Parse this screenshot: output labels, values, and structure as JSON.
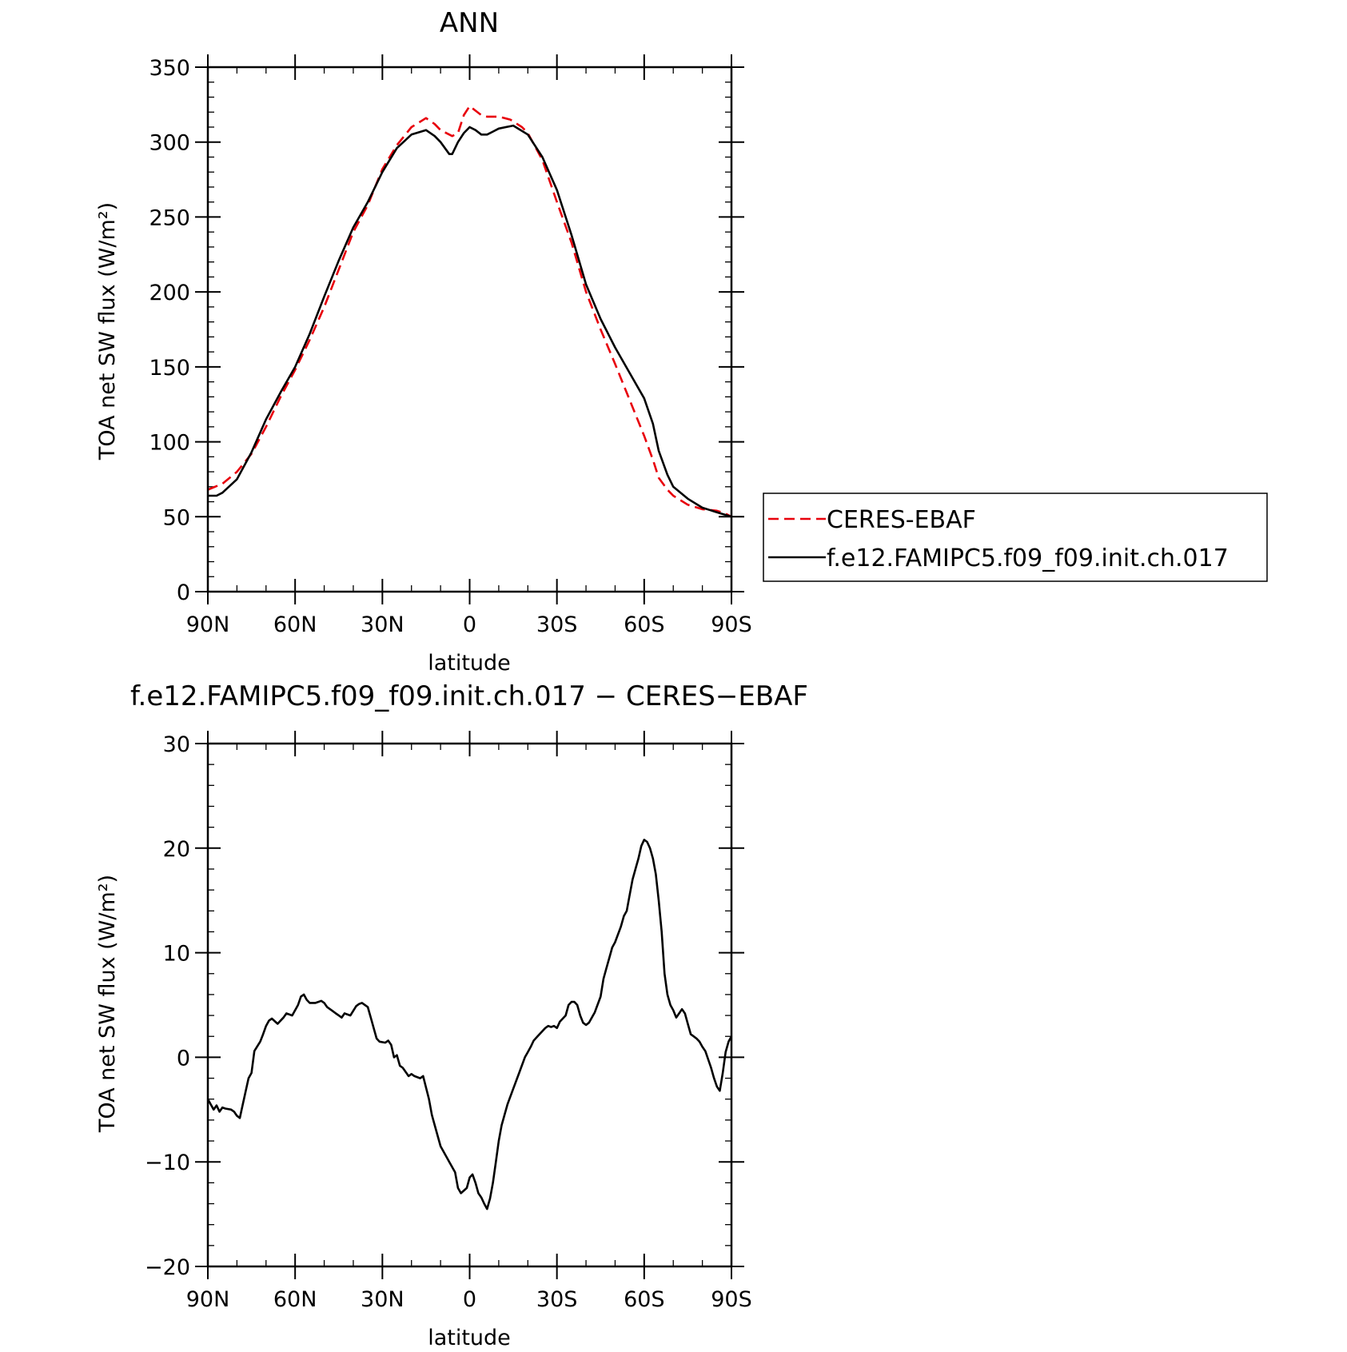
{
  "chart_data": [
    {
      "type": "line",
      "title": "ANN",
      "xlabel": "latitude",
      "ylabel": "TOA net SW flux (W/m²)",
      "xlim": [
        90,
        -90
      ],
      "ylim": [
        0,
        350
      ],
      "x_ticks": [
        90,
        60,
        30,
        0,
        -30,
        -60,
        -90
      ],
      "x_tick_labels": [
        "90N",
        "60N",
        "30N",
        "0",
        "30S",
        "60S",
        "90S"
      ],
      "y_ticks": [
        0,
        50,
        100,
        150,
        200,
        250,
        300,
        350
      ],
      "y_tick_labels": [
        "0",
        "50",
        "100",
        "150",
        "200",
        "250",
        "300",
        "350"
      ],
      "legend_placement": "right",
      "series": [
        {
          "name": "CERES-EBAF",
          "color": "#e8000b",
          "dash": "dashed",
          "x": [
            90,
            85,
            80,
            75,
            70,
            65,
            60,
            55,
            50,
            45,
            40,
            35,
            30,
            25,
            20,
            15,
            12,
            10,
            6,
            4,
            2,
            0,
            -2,
            -4,
            -6,
            -10,
            -14,
            -18,
            -20,
            -25,
            -30,
            -35,
            -40,
            -45,
            -50,
            -55,
            -60,
            -63,
            -65,
            -68,
            -70,
            -75,
            -80,
            -85,
            -88,
            -90
          ],
          "y": [
            68,
            72,
            80,
            92,
            110,
            130,
            148,
            168,
            190,
            215,
            240,
            258,
            282,
            298,
            310,
            316,
            312,
            308,
            304,
            306,
            318,
            324,
            321,
            318,
            317,
            317,
            315,
            310,
            306,
            288,
            260,
            233,
            200,
            175,
            152,
            128,
            104,
            88,
            76,
            68,
            64,
            58,
            55,
            54,
            52,
            50
          ]
        },
        {
          "name": "f.e12.FAMIPC5.f09_f09.init.ch.017",
          "color": "#000000",
          "dash": "solid",
          "x": [
            90,
            87,
            85,
            80,
            75,
            70,
            65,
            60,
            55,
            50,
            45,
            40,
            35,
            30,
            25,
            20,
            15,
            12,
            10,
            7,
            6,
            4,
            2,
            0,
            -2,
            -4,
            -6,
            -8,
            -10,
            -15,
            -20,
            -25,
            -30,
            -35,
            -40,
            -45,
            -50,
            -55,
            -60,
            -63,
            -65,
            -68,
            -70,
            -75,
            -80,
            -85,
            -90
          ],
          "y": [
            64,
            64,
            66,
            75,
            93,
            115,
            133,
            150,
            172,
            197,
            221,
            243,
            260,
            280,
            296,
            305,
            308,
            304,
            300,
            292,
            292,
            300,
            306,
            310,
            308,
            305,
            305,
            307,
            309,
            311,
            305,
            290,
            268,
            238,
            205,
            182,
            163,
            146,
            129,
            112,
            94,
            78,
            70,
            62,
            56,
            53,
            50
          ]
        }
      ]
    },
    {
      "type": "line",
      "title": "f.e12.FAMIPC5.f09_f09.init.ch.017 − CERES−EBAF",
      "xlabel": "latitude",
      "ylabel": "TOA net SW flux (W/m²)",
      "xlim": [
        90,
        -90
      ],
      "ylim": [
        -20,
        30
      ],
      "x_ticks": [
        90,
        60,
        30,
        0,
        -30,
        -60,
        -90
      ],
      "x_tick_labels": [
        "90N",
        "60N",
        "30N",
        "0",
        "30S",
        "60S",
        "90S"
      ],
      "y_ticks": [
        -20,
        -10,
        0,
        10,
        20,
        30
      ],
      "y_tick_labels": [
        "−20",
        "−10",
        "0",
        "10",
        "20",
        "30"
      ],
      "series": [
        {
          "color": "#000000",
          "dash": "solid",
          "x": [
            90,
            89,
            88,
            87,
            86,
            85,
            84,
            82,
            81,
            80,
            79,
            78,
            76,
            75,
            74,
            72,
            71,
            70,
            69,
            68,
            66,
            64,
            63,
            61,
            59,
            58,
            57,
            56,
            55,
            53,
            51,
            50,
            49,
            47,
            46,
            45,
            44,
            43,
            41,
            39,
            38,
            37,
            35,
            34,
            32,
            31,
            29,
            28,
            27,
            26,
            25,
            24,
            23,
            21,
            20,
            19,
            17,
            16,
            14,
            13,
            12,
            10,
            8,
            7,
            5,
            4,
            3,
            1,
            0,
            -1,
            -2,
            -3,
            -4,
            -5,
            -6,
            -7,
            -8,
            -9,
            -10,
            -11,
            -13,
            -15,
            -17,
            -19,
            -20,
            -21,
            -22,
            -24,
            -26,
            -27,
            -28,
            -29,
            -30,
            -31,
            -33,
            -34,
            -35,
            -36,
            -37,
            -38,
            -39,
            -40,
            -41,
            -43,
            -45,
            -46,
            -47,
            -48,
            -49,
            -50,
            -52,
            -53,
            -54,
            -55,
            -56,
            -57,
            -58,
            -59,
            -60,
            -61,
            -62,
            -63,
            -64,
            -65,
            -66,
            -67,
            -68,
            -69,
            -70,
            -71,
            -72,
            -73,
            -74,
            -75,
            -76,
            -77,
            -78,
            -79,
            -80,
            -81,
            -82,
            -83,
            -84,
            -85,
            -86,
            -87,
            -88,
            -89,
            -90
          ],
          "y": [
            -4.0,
            -4.5,
            -5.0,
            -4.6,
            -5.2,
            -4.8,
            -4.9,
            -5.0,
            -5.2,
            -5.6,
            -5.8,
            -4.5,
            -2.0,
            -1.5,
            0.6,
            1.5,
            2.2,
            3.0,
            3.5,
            3.7,
            3.2,
            3.8,
            4.2,
            4.0,
            5.0,
            5.8,
            6.0,
            5.5,
            5.2,
            5.2,
            5.4,
            5.2,
            4.8,
            4.4,
            4.2,
            4.0,
            3.8,
            4.2,
            4.0,
            4.9,
            5.1,
            5.2,
            4.8,
            3.8,
            1.8,
            1.5,
            1.4,
            1.6,
            1.2,
            0.0,
            0.2,
            -0.8,
            -1.0,
            -1.8,
            -1.6,
            -1.8,
            -2.0,
            -1.8,
            -4.0,
            -5.5,
            -6.5,
            -8.5,
            -9.5,
            -10.0,
            -11.0,
            -12.5,
            -13.0,
            -12.5,
            -11.5,
            -11.2,
            -12.0,
            -13.0,
            -13.4,
            -14.0,
            -14.5,
            -13.5,
            -12.0,
            -10.0,
            -8.0,
            -6.5,
            -4.5,
            -3.0,
            -1.5,
            0.0,
            0.5,
            1.0,
            1.6,
            2.2,
            2.8,
            3.0,
            2.9,
            3.0,
            2.8,
            3.4,
            4.0,
            5.0,
            5.3,
            5.3,
            5.0,
            4.0,
            3.3,
            3.1,
            3.3,
            4.3,
            5.8,
            7.5,
            8.5,
            9.5,
            10.5,
            11.0,
            12.5,
            13.5,
            14.0,
            15.5,
            17.0,
            18.0,
            19.0,
            20.2,
            20.8,
            20.6,
            20.0,
            19.0,
            17.5,
            15.0,
            12.0,
            8.0,
            6.0,
            5.0,
            4.5,
            3.8,
            4.2,
            4.6,
            4.2,
            3.2,
            2.2,
            2.0,
            1.8,
            1.5,
            1.0,
            0.6,
            -0.2,
            -1.0,
            -2.0,
            -2.8,
            -3.2,
            -1.5,
            0.5,
            1.5,
            2.0
          ]
        }
      ]
    }
  ]
}
